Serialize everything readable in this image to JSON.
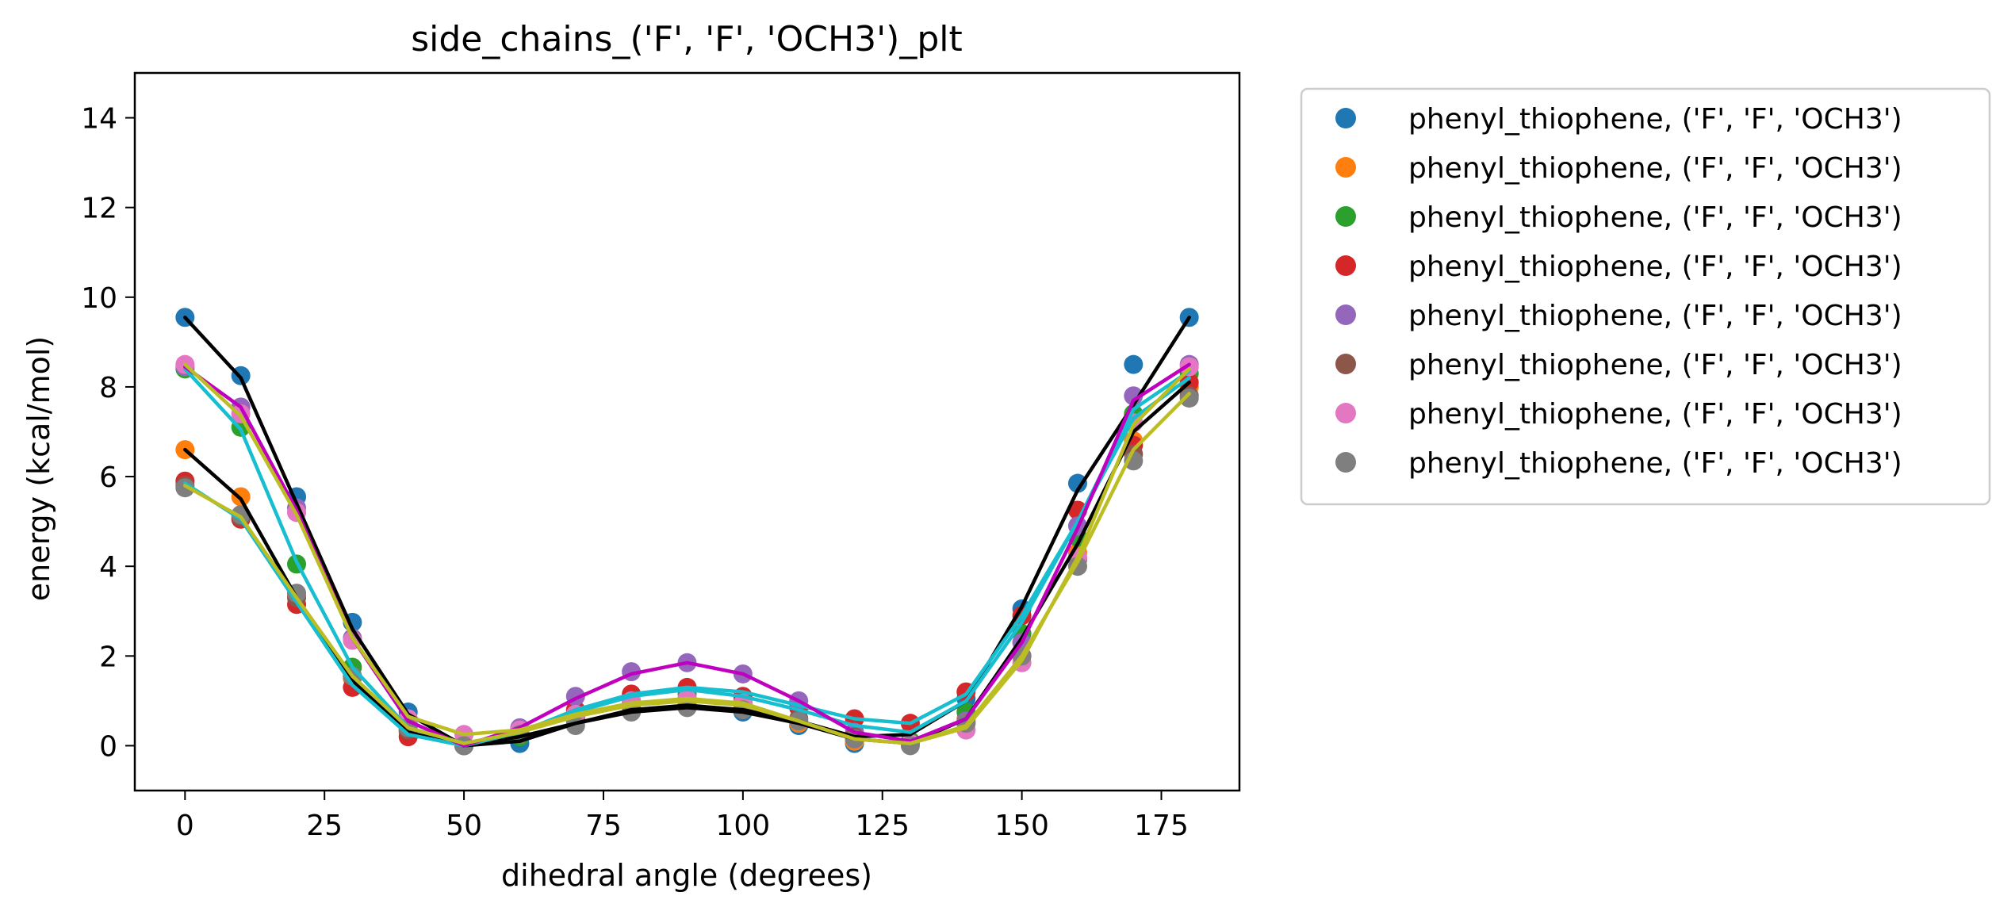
{
  "chart_data": {
    "type": "scatter",
    "title": "side_chains_('F', 'F', 'OCH3')_plt",
    "xlabel": "dihedral angle (degrees)",
    "ylabel": "energy (kcal/mol)",
    "xlim": [
      -9,
      189
    ],
    "ylim": [
      -1,
      15
    ],
    "xticks": [
      0,
      25,
      50,
      75,
      100,
      125,
      150,
      175
    ],
    "yticks": [
      0,
      2,
      4,
      6,
      8,
      10,
      12,
      14
    ],
    "legend_position": "outside-right-top",
    "x": [
      0,
      10,
      20,
      30,
      40,
      50,
      60,
      70,
      80,
      90,
      100,
      110,
      120,
      130,
      140,
      150,
      160,
      170,
      180
    ],
    "series": [
      {
        "name": "phenyl_thiophene, ('F', 'F', 'OCH3')",
        "color": "#1f77b4",
        "values": [
          9.55,
          8.25,
          5.55,
          2.75,
          0.75,
          0.0,
          0.05,
          0.55,
          0.85,
          0.95,
          0.75,
          0.45,
          0.05,
          0.1,
          1.05,
          3.05,
          5.85,
          8.5,
          9.55
        ]
      },
      {
        "name": "phenyl_thiophene, ('F', 'F', 'OCH3')",
        "color": "#ff7f0e",
        "values": [
          6.6,
          5.55,
          3.35,
          1.5,
          0.3,
          0.0,
          0.25,
          0.6,
          0.85,
          0.95,
          0.85,
          0.5,
          0.1,
          0.05,
          0.6,
          2.3,
          4.3,
          6.8,
          8.0
        ]
      },
      {
        "name": "phenyl_thiophene, ('F', 'F', 'OCH3')",
        "color": "#2ca02c",
        "values": [
          8.4,
          7.1,
          4.05,
          1.75,
          0.35,
          0.0,
          0.2,
          0.65,
          1.0,
          1.15,
          1.0,
          0.6,
          0.2,
          0.1,
          0.75,
          2.5,
          4.65,
          7.4,
          8.3
        ]
      },
      {
        "name": "phenyl_thiophene, ('F', 'F', 'OCH3')",
        "color": "#d62728",
        "values": [
          5.9,
          5.05,
          3.15,
          1.3,
          0.2,
          0.0,
          0.3,
          0.8,
          1.15,
          1.3,
          1.1,
          0.85,
          0.6,
          0.5,
          1.2,
          2.9,
          5.25,
          6.7,
          8.1
        ]
      },
      {
        "name": "phenyl_thiophene, ('F', 'F', 'OCH3')",
        "color": "#9467bd",
        "values": [
          8.45,
          7.55,
          5.3,
          2.4,
          0.55,
          0.0,
          0.4,
          1.1,
          1.65,
          1.85,
          1.6,
          1.0,
          0.3,
          0.05,
          0.55,
          2.3,
          4.9,
          7.8,
          8.5
        ]
      },
      {
        "name": "phenyl_thiophene, ('F', 'F', 'OCH3')",
        "color": "#8c564b",
        "values": [
          5.8,
          5.1,
          3.3,
          1.55,
          0.35,
          0.0,
          0.3,
          0.65,
          0.95,
          1.05,
          0.95,
          0.6,
          0.2,
          0.05,
          0.5,
          2.0,
          4.15,
          6.5,
          7.8
        ]
      },
      {
        "name": "phenyl_thiophene, ('F', 'F', 'OCH3')",
        "color": "#e377c2",
        "values": [
          8.5,
          7.4,
          5.2,
          2.35,
          0.6,
          0.25,
          0.35,
          0.7,
          1.0,
          1.05,
          0.95,
          0.55,
          0.15,
          0.05,
          0.35,
          1.85,
          4.2,
          7.2,
          8.45
        ]
      },
      {
        "name": "phenyl_thiophene, ('F', 'F', 'OCH3')",
        "color": "#7f7f7f",
        "values": [
          5.75,
          5.15,
          3.4,
          1.55,
          0.4,
          0.0,
          0.25,
          0.45,
          0.75,
          0.85,
          0.8,
          0.55,
          0.15,
          0.0,
          0.5,
          2.0,
          4.0,
          6.35,
          7.75
        ]
      }
    ],
    "fit_lines": [
      {
        "color": "#000000",
        "values": [
          9.55,
          8.2,
          5.4,
          2.6,
          0.7,
          0.0,
          0.1,
          0.5,
          0.8,
          0.9,
          0.8,
          0.55,
          0.2,
          0.25,
          1.0,
          3.1,
          5.7,
          7.6,
          9.55
        ]
      },
      {
        "color": "#000000",
        "values": [
          6.6,
          5.5,
          3.3,
          1.45,
          0.3,
          0.0,
          0.2,
          0.5,
          0.75,
          0.85,
          0.75,
          0.5,
          0.15,
          0.05,
          0.6,
          2.4,
          4.5,
          7.0,
          8.1
        ]
      },
      {
        "color": "#17becf",
        "values": [
          8.4,
          7.05,
          4.1,
          1.75,
          0.4,
          0.05,
          0.3,
          0.8,
          1.15,
          1.3,
          1.2,
          0.9,
          0.6,
          0.5,
          1.15,
          2.9,
          5.0,
          7.5,
          8.35
        ]
      },
      {
        "color": "#17becf",
        "values": [
          5.85,
          5.05,
          3.2,
          1.35,
          0.25,
          0.0,
          0.3,
          0.75,
          1.1,
          1.25,
          1.1,
          0.8,
          0.45,
          0.3,
          1.0,
          2.75,
          5.0,
          7.3,
          8.2
        ]
      },
      {
        "color": "#bf00bf",
        "values": [
          8.45,
          7.55,
          5.25,
          2.4,
          0.55,
          0.0,
          0.4,
          1.05,
          1.6,
          1.85,
          1.6,
          1.0,
          0.3,
          0.1,
          0.6,
          2.3,
          4.85,
          7.7,
          8.5
        ]
      },
      {
        "color": "#bcbd22",
        "values": [
          5.8,
          5.1,
          3.3,
          1.55,
          0.4,
          0.05,
          0.3,
          0.65,
          0.9,
          1.0,
          0.9,
          0.55,
          0.15,
          0.05,
          0.45,
          2.0,
          4.1,
          6.6,
          7.85
        ]
      },
      {
        "color": "#bcbd22",
        "values": [
          8.5,
          7.35,
          5.15,
          2.4,
          0.65,
          0.25,
          0.35,
          0.7,
          0.95,
          1.05,
          0.95,
          0.55,
          0.15,
          0.05,
          0.4,
          1.9,
          4.2,
          7.15,
          8.4
        ]
      }
    ]
  }
}
